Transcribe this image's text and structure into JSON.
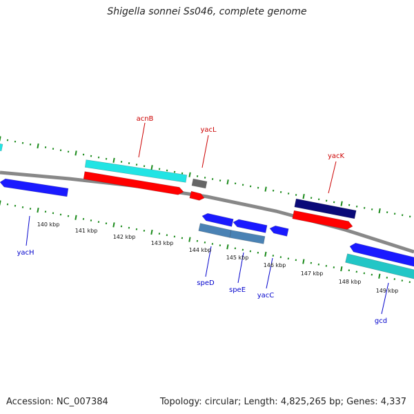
{
  "title": "Shigella sonnei Ss046, complete genome",
  "footer": {
    "accession_label": "Accession:",
    "accession": "NC_007384",
    "topology_label": "Topology:",
    "topology": "circular",
    "length_label": "Length:",
    "length": "4,825,265 bp",
    "genes_label": "Genes:",
    "genes": "4,337"
  },
  "colors": {
    "backbone": "#888888",
    "tick": "#1a8a1a",
    "forward_label": "#cc0000",
    "reverse_label": "#0000cc",
    "red_gene": "#ff0000",
    "blue_gene": "#1a1aff",
    "cyan_gene": "#22e4e4",
    "teal_gene": "#22c6c6",
    "steel_gene": "#4a82b4",
    "navy_gene": "#0a0a78",
    "gray_gene": "#666666"
  },
  "tick_labels": [
    "140 kbp",
    "141 kbp",
    "142 kbp",
    "143 kbp",
    "144 kbp",
    "145 kbp",
    "146 kbp",
    "147 kbp",
    "148 kbp",
    "149 kbp"
  ],
  "gene_labels": [
    {
      "name": "acnB",
      "strand": "forward"
    },
    {
      "name": "yacL",
      "strand": "forward"
    },
    {
      "name": "yacK",
      "strand": "forward"
    },
    {
      "name": "yacH",
      "strand": "reverse"
    },
    {
      "name": "speD",
      "strand": "reverse"
    },
    {
      "name": "speE",
      "strand": "reverse"
    },
    {
      "name": "yacC",
      "strand": "reverse"
    },
    {
      "name": "gcd",
      "strand": "reverse"
    }
  ]
}
